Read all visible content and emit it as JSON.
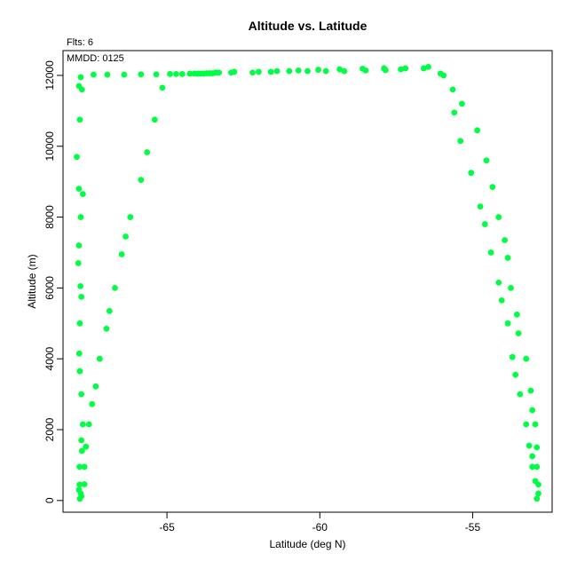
{
  "chart_data": {
    "type": "scatter",
    "title": "Altitude vs. Latitude",
    "header_left": "Flts: 6",
    "annotation": "MMDD: 0125",
    "xlabel": "Latitude (deg N)",
    "ylabel": "Altitude (m)",
    "xlim": [
      -68.4,
      -52.4
    ],
    "ylim": [
      -330,
      12700
    ],
    "xticks": [
      -65,
      -60,
      -55
    ],
    "yticks": [
      0,
      2000,
      4000,
      6000,
      8000,
      10000,
      12000
    ],
    "point_color": "#00ff44",
    "grid": false,
    "points": [
      {
        "x": -67.85,
        "y": 50
      },
      {
        "x": -67.8,
        "y": 120
      },
      {
        "x": -67.82,
        "y": 200
      },
      {
        "x": -67.88,
        "y": 300
      },
      {
        "x": -67.86,
        "y": 450
      },
      {
        "x": -67.7,
        "y": 460
      },
      {
        "x": -67.86,
        "y": 950
      },
      {
        "x": -67.7,
        "y": 950
      },
      {
        "x": -67.78,
        "y": 1400
      },
      {
        "x": -67.65,
        "y": 1520
      },
      {
        "x": -67.8,
        "y": 1700
      },
      {
        "x": -67.75,
        "y": 2150
      },
      {
        "x": -67.55,
        "y": 2150
      },
      {
        "x": -67.45,
        "y": 2720
      },
      {
        "x": -67.33,
        "y": 3220
      },
      {
        "x": -67.8,
        "y": 3000
      },
      {
        "x": -67.85,
        "y": 3650
      },
      {
        "x": -67.87,
        "y": 4150
      },
      {
        "x": -67.2,
        "y": 4000
      },
      {
        "x": -66.98,
        "y": 4850
      },
      {
        "x": -66.88,
        "y": 5350
      },
      {
        "x": -67.85,
        "y": 5000
      },
      {
        "x": -67.8,
        "y": 5750
      },
      {
        "x": -67.83,
        "y": 6050
      },
      {
        "x": -66.7,
        "y": 6000
      },
      {
        "x": -66.48,
        "y": 6950
      },
      {
        "x": -66.35,
        "y": 7450
      },
      {
        "x": -67.9,
        "y": 6700
      },
      {
        "x": -67.88,
        "y": 7200
      },
      {
        "x": -66.2,
        "y": 8000
      },
      {
        "x": -67.82,
        "y": 8000
      },
      {
        "x": -67.75,
        "y": 8650
      },
      {
        "x": -67.88,
        "y": 8800
      },
      {
        "x": -65.85,
        "y": 9050
      },
      {
        "x": -65.65,
        "y": 9830
      },
      {
        "x": -67.95,
        "y": 9700
      },
      {
        "x": -65.4,
        "y": 10750
      },
      {
        "x": -67.85,
        "y": 10750
      },
      {
        "x": -65.15,
        "y": 11650
      },
      {
        "x": -67.78,
        "y": 11600
      },
      {
        "x": -67.88,
        "y": 11700
      },
      {
        "x": -67.82,
        "y": 11950
      },
      {
        "x": -67.4,
        "y": 12020
      },
      {
        "x": -66.95,
        "y": 12020
      },
      {
        "x": -66.4,
        "y": 12020
      },
      {
        "x": -65.85,
        "y": 12030
      },
      {
        "x": -65.35,
        "y": 12030
      },
      {
        "x": -64.9,
        "y": 12040
      },
      {
        "x": -64.7,
        "y": 12040
      },
      {
        "x": -64.5,
        "y": 12040
      },
      {
        "x": -64.25,
        "y": 12050
      },
      {
        "x": -64.1,
        "y": 12050
      },
      {
        "x": -64.0,
        "y": 12050
      },
      {
        "x": -63.9,
        "y": 12050
      },
      {
        "x": -63.8,
        "y": 12050
      },
      {
        "x": -63.7,
        "y": 12060
      },
      {
        "x": -63.6,
        "y": 12060
      },
      {
        "x": -63.5,
        "y": 12060
      },
      {
        "x": -63.4,
        "y": 12080
      },
      {
        "x": -63.3,
        "y": 12080
      },
      {
        "x": -62.9,
        "y": 12080
      },
      {
        "x": -62.8,
        "y": 12100
      },
      {
        "x": -62.2,
        "y": 12080
      },
      {
        "x": -62.0,
        "y": 12100
      },
      {
        "x": -61.6,
        "y": 12100
      },
      {
        "x": -61.4,
        "y": 12120
      },
      {
        "x": -61.0,
        "y": 12120
      },
      {
        "x": -60.7,
        "y": 12140
      },
      {
        "x": -60.4,
        "y": 12120
      },
      {
        "x": -60.05,
        "y": 12160
      },
      {
        "x": -59.8,
        "y": 12120
      },
      {
        "x": -59.35,
        "y": 12170
      },
      {
        "x": -59.2,
        "y": 12120
      },
      {
        "x": -58.6,
        "y": 12190
      },
      {
        "x": -58.5,
        "y": 12140
      },
      {
        "x": -57.9,
        "y": 12200
      },
      {
        "x": -57.85,
        "y": 12150
      },
      {
        "x": -57.35,
        "y": 12170
      },
      {
        "x": -57.2,
        "y": 12200
      },
      {
        "x": -56.6,
        "y": 12200
      },
      {
        "x": -56.45,
        "y": 12240
      },
      {
        "x": -56.05,
        "y": 12050
      },
      {
        "x": -55.95,
        "y": 12000
      },
      {
        "x": -55.65,
        "y": 11600
      },
      {
        "x": -55.35,
        "y": 11200
      },
      {
        "x": -55.6,
        "y": 10950
      },
      {
        "x": -54.85,
        "y": 10450
      },
      {
        "x": -55.4,
        "y": 10150
      },
      {
        "x": -54.55,
        "y": 9600
      },
      {
        "x": -55.05,
        "y": 9250
      },
      {
        "x": -54.35,
        "y": 8850
      },
      {
        "x": -54.75,
        "y": 8300
      },
      {
        "x": -54.15,
        "y": 8000
      },
      {
        "x": -54.6,
        "y": 7800
      },
      {
        "x": -53.95,
        "y": 7350
      },
      {
        "x": -54.4,
        "y": 7000
      },
      {
        "x": -53.85,
        "y": 6850
      },
      {
        "x": -54.15,
        "y": 6150
      },
      {
        "x": -53.75,
        "y": 6000
      },
      {
        "x": -54.05,
        "y": 5650
      },
      {
        "x": -53.55,
        "y": 5250
      },
      {
        "x": -53.85,
        "y": 5000
      },
      {
        "x": -53.5,
        "y": 4720
      },
      {
        "x": -53.7,
        "y": 4050
      },
      {
        "x": -53.25,
        "y": 4000
      },
      {
        "x": -53.6,
        "y": 3550
      },
      {
        "x": -53.1,
        "y": 3100
      },
      {
        "x": -53.45,
        "y": 3000
      },
      {
        "x": -53.05,
        "y": 2550
      },
      {
        "x": -53.25,
        "y": 2150
      },
      {
        "x": -52.95,
        "y": 2150
      },
      {
        "x": -53.15,
        "y": 1550
      },
      {
        "x": -52.9,
        "y": 1500
      },
      {
        "x": -53.05,
        "y": 1250
      },
      {
        "x": -53.05,
        "y": 950
      },
      {
        "x": -52.9,
        "y": 950
      },
      {
        "x": -52.95,
        "y": 550
      },
      {
        "x": -52.85,
        "y": 450
      },
      {
        "x": -52.85,
        "y": 200
      },
      {
        "x": -52.9,
        "y": 50
      }
    ]
  }
}
